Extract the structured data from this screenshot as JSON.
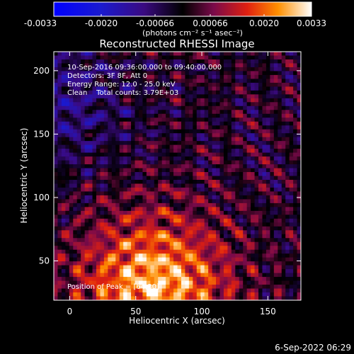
{
  "chart_data": {
    "type": "heatmap",
    "title": "Reconstructed RHESSI Image",
    "xlabel": "Heliocentric X (arcsec)",
    "ylabel": "Heliocentric Y (arcsec)",
    "xlim": [
      -12,
      175
    ],
    "ylim": [
      19,
      215
    ],
    "xticks": [
      0,
      50,
      100,
      150
    ],
    "yticks": [
      50,
      100,
      150,
      200
    ],
    "colorbar": {
      "range": [
        -0.0033,
        0.0033
      ],
      "ticks": [
        "-0.0033",
        "-0.0020",
        "-0.00066",
        "0.00066",
        "0.0020",
        "0.0033"
      ],
      "label": "(photons cm⁻² s⁻¹ asec⁻²)"
    },
    "annotations": [
      "10-Sep-2016 09:36:00.000 to 09:40:00.000",
      "Detectors: 3F 8F, Att 0",
      "Energy Range: 12.0 - 25.0 keV",
      "Clean    Total counts: 3.79E+03"
    ],
    "peak_label": "Position of Peak = [64,30]",
    "peak": [
      64,
      30
    ]
  },
  "footer_timestamp": "6-Sep-2022 06:29"
}
